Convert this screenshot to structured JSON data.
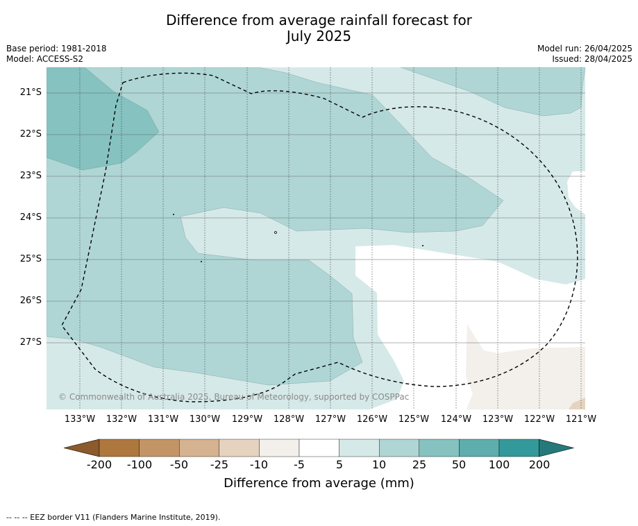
{
  "title_line1": "Difference from average rainfall forecast for",
  "title_line2": "July 2025",
  "base_period": "Base period: 1981-2018",
  "model": "Model: ACCESS-S2",
  "model_run": "Model run: 26/04/2025",
  "issued": "Issued: 28/04/2025",
  "copyright": "© Commonwealth of Australia 2025, Bureau of Meteorology, supported by COSPPac",
  "lat_labels": [
    "21°S",
    "22°S",
    "23°S",
    "24°S",
    "25°S",
    "26°S",
    "27°S"
  ],
  "lon_labels": [
    "133°W",
    "132°W",
    "131°W",
    "130°W",
    "129°W",
    "128°W",
    "127°W",
    "126°W",
    "125°W",
    "124°W",
    "123°W",
    "122°W",
    "121°W"
  ],
  "colorbar": {
    "ticks": [
      "-200",
      "-100",
      "-50",
      "-25",
      "-10",
      "-5",
      "5",
      "10",
      "25",
      "50",
      "100",
      "200"
    ],
    "colors": [
      "#8c5a2b",
      "#ae773e",
      "#c39566",
      "#d5b290",
      "#e5d3c0",
      "#f3efea",
      "#ffffff",
      "#d5e9e8",
      "#afd6d5",
      "#85c2c0",
      "#5daeac",
      "#33999a",
      "#25797b"
    ],
    "label": "Difference from average (mm)"
  },
  "footnote": "--  --  -- EEZ border V11 (Flanders Marine Institute, 2019)."
}
